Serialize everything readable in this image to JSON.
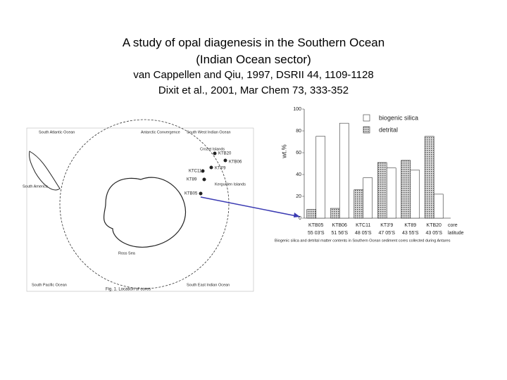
{
  "title": [
    "A study of opal diagenesis in the Southern Ocean",
    "(Indian Ocean sector)"
  ],
  "citations": [
    "van Cappellen and Qiu, 1997, DSRII 44, 1109-1128",
    "Dixit et al., 2001, Mar Chem 73, 333-352"
  ],
  "map": {
    "labels": [
      "South Atlantic Ocean",
      "Antarctic Convergence",
      "South West Indian Ocean",
      "Crozet Islands",
      "KTB20",
      "KTB06",
      "KT3'9",
      "KTC11",
      "KT89",
      "KTB05",
      "Kerguelen Islands",
      "South America",
      "Ross Sea",
      "South Pacific Ocean",
      "South East Indian Ocean"
    ],
    "caption": "Fig. 1. Location of cores"
  },
  "chart": {
    "type": "bar",
    "y_label": "wt.%",
    "x_label": [
      "core",
      "latitude"
    ],
    "categories": [
      "KTB05",
      "KTB06",
      "KTC11",
      "KT3'9",
      "KT89",
      "KTB20"
    ],
    "latitudes": [
      "55 03'S",
      "51 56'S",
      "48 05'S",
      "47 05'S",
      "43 55'S",
      "43 05'S"
    ],
    "series": [
      {
        "name": "biogenic silica",
        "color": "#ffffff",
        "values": [
          75,
          87,
          37,
          46,
          44,
          22
        ]
      },
      {
        "name": "detrital",
        "color": "#9a9a9a",
        "values": [
          8,
          9,
          26,
          51,
          53,
          75
        ]
      }
    ],
    "ylim": [
      0,
      100
    ],
    "yticks": [
      0,
      20,
      40,
      60,
      80,
      100
    ],
    "caption": "Biogenic silica and detrital matter contents in Southern Ocean sediment cores collected during Antares"
  }
}
